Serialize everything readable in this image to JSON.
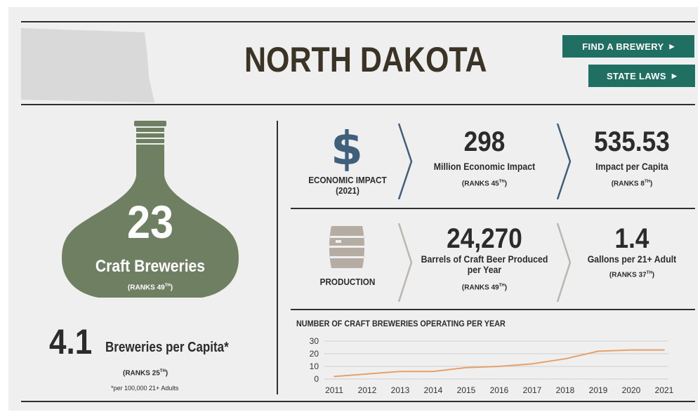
{
  "header": {
    "title": "NORTH DAKOTA",
    "buttons": {
      "find_brewery": "FIND A BREWERY",
      "state_laws": "STATE LAWS"
    },
    "icon_arrow": "right-triangle"
  },
  "breweries": {
    "count": "23",
    "label": "Craft Breweries",
    "rank_text": "(RANKS 49",
    "rank_suffix": "TH",
    "rank_close": ")"
  },
  "per_capita": {
    "value": "4.1",
    "label": "Breweries per Capita*",
    "rank_text": "(RANKS 25",
    "rank_suffix": "TH",
    "rank_close": ")",
    "note": "*per 100,000 21+ Adults"
  },
  "economic": {
    "icon": "dollar-sign-icon",
    "label_line1": "ECONOMIC IMPACT",
    "label_line2": "(2021)",
    "impact_value": "298",
    "impact_label": "Million Economic Impact",
    "impact_rank": "(RANKS 45",
    "impact_rank_suffix": "TH",
    "impact_rank_close": ")",
    "capita_value": "535.53",
    "capita_label": "Impact per Capita",
    "capita_rank": "(RANKS 8",
    "capita_rank_suffix": "TH",
    "capita_rank_close": ")"
  },
  "production": {
    "icon": "keg-icon",
    "label": "PRODUCTION",
    "barrels_value": "24,270",
    "barrels_label_line1": "Barrels of Craft Beer Produced",
    "barrels_label_line2": "per Year",
    "barrels_rank": "(RANKS 49",
    "barrels_rank_suffix": "TH",
    "barrels_rank_close": ")",
    "gallons_value": "1.4",
    "gallons_label": "Gallons per 21+ Adult",
    "gallons_rank": "(RANKS 37",
    "gallons_rank_suffix": "TH",
    "gallons_rank_close": ")"
  },
  "colors": {
    "accent": "#1f6f62",
    "bottle": "#6f8062",
    "chevron_blue": "#3f5f7a",
    "chevron_tan": "#bdb6ae",
    "line": "#e8a06a",
    "background": "#efefef"
  },
  "chart_data": {
    "type": "line",
    "title": "NUMBER OF CRAFT BREWERIES OPERATING PER YEAR",
    "x": [
      2011,
      2012,
      2013,
      2014,
      2015,
      2016,
      2017,
      2018,
      2019,
      2020,
      2021
    ],
    "series": [
      {
        "values": [
          2,
          4,
          6,
          6,
          9,
          10,
          12,
          16,
          22,
          23,
          23
        ]
      }
    ],
    "ylim": [
      0,
      30
    ],
    "yticks": [
      0,
      10,
      20,
      30
    ],
    "grid": "horizontal",
    "xlabel": "",
    "ylabel": ""
  }
}
